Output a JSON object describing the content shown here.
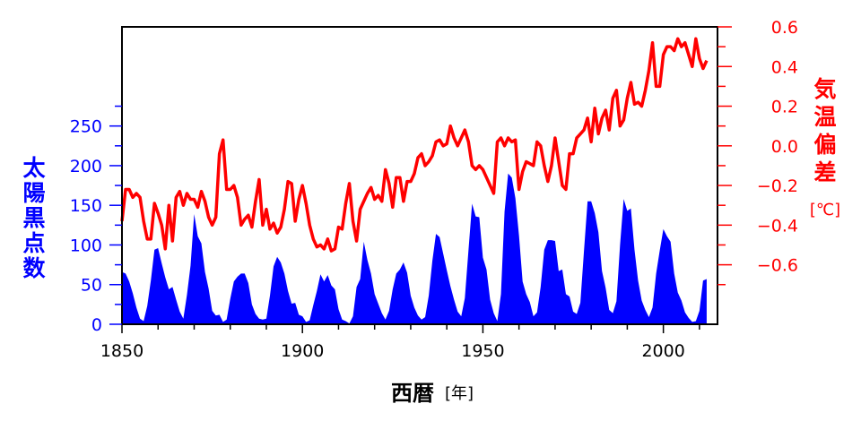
{
  "chart_data": {
    "type": "area+line",
    "xlabel": "西暦",
    "xlabel_unit": "[年]",
    "ylabel_left": [
      "太",
      "陽",
      "黒",
      "点",
      "数"
    ],
    "ylabel_right": [
      "気",
      "温",
      "偏",
      "差"
    ],
    "ylabel_right_unit": "[℃]",
    "xlim": [
      1850,
      2015
    ],
    "xticks": [
      1850,
      1900,
      1950,
      2000
    ],
    "ylim_left": [
      0,
      375
    ],
    "yticks_left": [
      0,
      50,
      100,
      150,
      200,
      250
    ],
    "ylim_right": [
      -0.9,
      0.6
    ],
    "yticks_right": [
      -0.6,
      -0.4,
      -0.2,
      0.0,
      0.2,
      0.4,
      0.6
    ],
    "ytick_labels_right": [
      "−0.6",
      "−0.4",
      "−0.2",
      "0.0",
      "0.2",
      "0.4",
      "0.6"
    ],
    "grid": false,
    "legend": "none",
    "colors": {
      "sunspots": "#0000ff",
      "temperature": "#ff0000",
      "frame": "#000000"
    },
    "sunspots": {
      "name": "",
      "x": [
        1850,
        1851,
        1852,
        1853,
        1854,
        1855,
        1856,
        1857,
        1858,
        1859,
        1860,
        1861,
        1862,
        1863,
        1864,
        1865,
        1866,
        1867,
        1868,
        1869,
        1870,
        1871,
        1872,
        1873,
        1874,
        1875,
        1876,
        1877,
        1878,
        1879,
        1880,
        1881,
        1882,
        1883,
        1884,
        1885,
        1886,
        1887,
        1888,
        1889,
        1890,
        1891,
        1892,
        1893,
        1894,
        1895,
        1896,
        1897,
        1898,
        1899,
        1900,
        1901,
        1902,
        1903,
        1904,
        1905,
        1906,
        1907,
        1908,
        1909,
        1910,
        1911,
        1912,
        1913,
        1914,
        1915,
        1916,
        1917,
        1918,
        1919,
        1920,
        1921,
        1922,
        1923,
        1924,
        1925,
        1926,
        1927,
        1928,
        1929,
        1930,
        1931,
        1932,
        1933,
        1934,
        1935,
        1936,
        1937,
        1938,
        1939,
        1940,
        1941,
        1942,
        1943,
        1944,
        1945,
        1946,
        1947,
        1948,
        1949,
        1950,
        1951,
        1952,
        1953,
        1954,
        1955,
        1956,
        1957,
        1958,
        1959,
        1960,
        1961,
        1962,
        1963,
        1964,
        1965,
        1966,
        1967,
        1968,
        1969,
        1970,
        1971,
        1972,
        1973,
        1974,
        1975,
        1976,
        1977,
        1978,
        1979,
        1980,
        1981,
        1982,
        1983,
        1984,
        1985,
        1986,
        1987,
        1988,
        1989,
        1990,
        1991,
        1992,
        1993,
        1994,
        1995,
        1996,
        1997,
        1998,
        1999,
        2000,
        2001,
        2002,
        2003,
        2004,
        2005,
        2006,
        2007,
        2008,
        2009,
        2010,
        2011,
        2012
      ],
      "values": [
        66,
        64,
        54,
        39,
        21,
        7,
        4,
        23,
        55,
        94,
        96,
        77,
        59,
        44,
        47,
        31,
        16,
        7,
        37,
        74,
        139,
        111,
        102,
        66,
        45,
        17,
        11,
        12,
        3,
        6,
        32,
        54,
        60,
        64,
        64,
        52,
        25,
        13,
        7,
        6,
        7,
        36,
        73,
        85,
        78,
        64,
        42,
        26,
        27,
        12,
        10,
        3,
        5,
        24,
        42,
        63,
        54,
        62,
        49,
        44,
        19,
        6,
        4,
        1,
        10,
        47,
        57,
        104,
        81,
        64,
        38,
        26,
        14,
        6,
        17,
        44,
        64,
        69,
        78,
        65,
        36,
        21,
        11,
        6,
        9,
        36,
        80,
        114,
        110,
        89,
        68,
        48,
        31,
        16,
        10,
        33,
        93,
        152,
        136,
        135,
        84,
        69,
        31,
        14,
        4,
        38,
        142,
        190,
        185,
        159,
        112,
        54,
        38,
        28,
        10,
        15,
        47,
        94,
        106,
        106,
        105,
        67,
        69,
        38,
        35,
        16,
        13,
        27,
        92,
        155,
        155,
        140,
        116,
        67,
        46,
        18,
        14,
        29,
        100,
        158,
        143,
        146,
        94,
        55,
        30,
        18,
        9,
        21,
        64,
        93,
        120,
        111,
        104,
        64,
        40,
        30,
        15,
        8,
        3,
        4,
        17,
        55,
        57
      ]
    },
    "temperature": {
      "name": "",
      "x": [
        1850,
        1851,
        1852,
        1853,
        1854,
        1855,
        1856,
        1857,
        1858,
        1859,
        1860,
        1861,
        1862,
        1863,
        1864,
        1865,
        1866,
        1867,
        1868,
        1869,
        1870,
        1871,
        1872,
        1873,
        1874,
        1875,
        1876,
        1877,
        1878,
        1879,
        1880,
        1881,
        1882,
        1883,
        1884,
        1885,
        1886,
        1887,
        1888,
        1889,
        1890,
        1891,
        1892,
        1893,
        1894,
        1895,
        1896,
        1897,
        1898,
        1899,
        1900,
        1901,
        1902,
        1903,
        1904,
        1905,
        1906,
        1907,
        1908,
        1909,
        1910,
        1911,
        1912,
        1913,
        1914,
        1915,
        1916,
        1917,
        1918,
        1919,
        1920,
        1921,
        1922,
        1923,
        1924,
        1925,
        1926,
        1927,
        1928,
        1929,
        1930,
        1931,
        1932,
        1933,
        1934,
        1935,
        1936,
        1937,
        1938,
        1939,
        1940,
        1941,
        1942,
        1943,
        1944,
        1945,
        1946,
        1947,
        1948,
        1949,
        1950,
        1951,
        1952,
        1953,
        1954,
        1955,
        1956,
        1957,
        1958,
        1959,
        1960,
        1961,
        1962,
        1963,
        1964,
        1965,
        1966,
        1967,
        1968,
        1969,
        1970,
        1971,
        1972,
        1973,
        1974,
        1975,
        1976,
        1977,
        1978,
        1979,
        1980,
        1981,
        1982,
        1983,
        1984,
        1985,
        1986,
        1987,
        1988,
        1989,
        1990,
        1991,
        1992,
        1993,
        1994,
        1995,
        1996,
        1997,
        1998,
        1999,
        2000,
        2001,
        2002,
        2003,
        2004,
        2005,
        2006,
        2007,
        2008,
        2009,
        2010,
        2011,
        2012
      ],
      "values": [
        -0.38,
        -0.22,
        -0.22,
        -0.26,
        -0.24,
        -0.26,
        -0.38,
        -0.47,
        -0.47,
        -0.29,
        -0.34,
        -0.4,
        -0.52,
        -0.3,
        -0.48,
        -0.26,
        -0.23,
        -0.3,
        -0.24,
        -0.27,
        -0.27,
        -0.31,
        -0.23,
        -0.28,
        -0.36,
        -0.4,
        -0.36,
        -0.04,
        0.03,
        -0.22,
        -0.22,
        -0.2,
        -0.26,
        -0.4,
        -0.37,
        -0.35,
        -0.41,
        -0.28,
        -0.17,
        -0.4,
        -0.32,
        -0.42,
        -0.39,
        -0.44,
        -0.41,
        -0.32,
        -0.18,
        -0.19,
        -0.38,
        -0.27,
        -0.2,
        -0.29,
        -0.4,
        -0.47,
        -0.51,
        -0.5,
        -0.52,
        -0.47,
        -0.53,
        -0.52,
        -0.41,
        -0.42,
        -0.29,
        -0.19,
        -0.38,
        -0.48,
        -0.32,
        -0.28,
        -0.24,
        -0.21,
        -0.27,
        -0.25,
        -0.28,
        -0.12,
        -0.19,
        -0.31,
        -0.16,
        -0.16,
        -0.28,
        -0.18,
        -0.18,
        -0.14,
        -0.06,
        -0.04,
        -0.1,
        -0.08,
        -0.05,
        0.02,
        0.03,
        0.0,
        0.01,
        0.1,
        0.04,
        0.0,
        0.04,
        0.08,
        0.02,
        -0.1,
        -0.12,
        -0.1,
        -0.12,
        -0.16,
        -0.2,
        -0.24,
        0.02,
        0.04,
        0.0,
        0.04,
        0.02,
        0.03,
        -0.22,
        -0.13,
        -0.08,
        -0.09,
        -0.1,
        0.02,
        0.0,
        -0.1,
        -0.18,
        -0.1,
        0.04,
        -0.08,
        -0.2,
        -0.22,
        -0.04,
        -0.04,
        0.04,
        0.06,
        0.08,
        0.14,
        0.02,
        0.19,
        0.06,
        0.14,
        0.18,
        0.08,
        0.24,
        0.28,
        0.1,
        0.13,
        0.24,
        0.32,
        0.21,
        0.22,
        0.2,
        0.28,
        0.38,
        0.52,
        0.3,
        0.3,
        0.46,
        0.5,
        0.5,
        0.48,
        0.54,
        0.5,
        0.52,
        0.46,
        0.4,
        0.54,
        0.44,
        0.39,
        0.43
      ]
    }
  }
}
